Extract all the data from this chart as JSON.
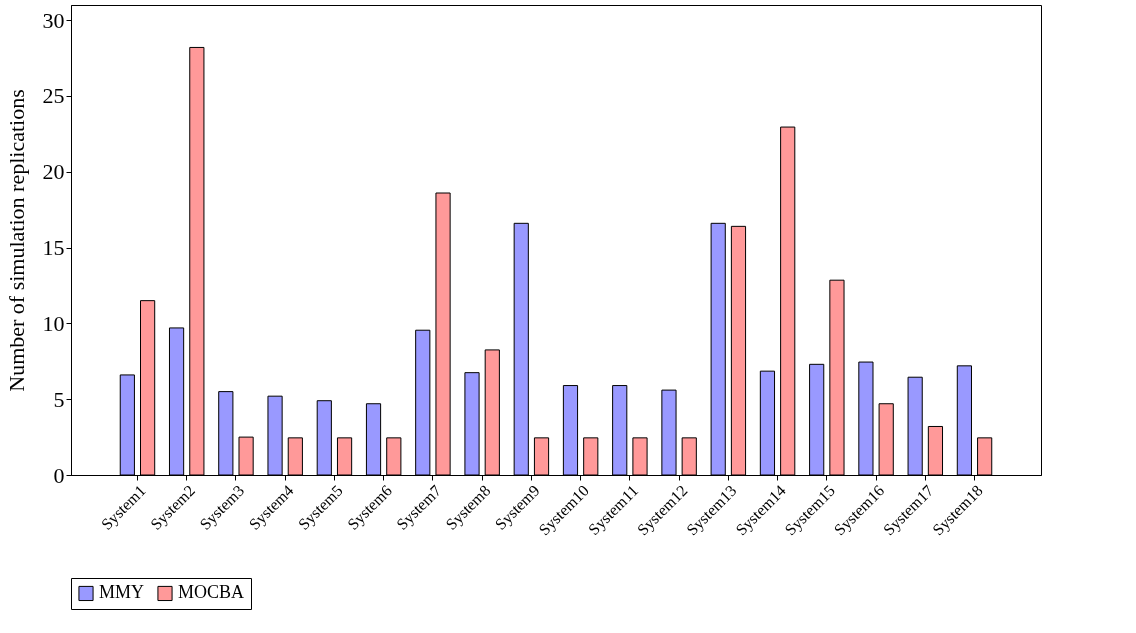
{
  "chart_data": {
    "type": "bar",
    "ylabel": "Number of simulation replications",
    "categories": [
      "System1",
      "System2",
      "System3",
      "System4",
      "System5",
      "System6",
      "System7",
      "System8",
      "System9",
      "System10",
      "System11",
      "System12",
      "System13",
      "System14",
      "System15",
      "System16",
      "System17",
      "System18"
    ],
    "series": [
      {
        "name": "MMY",
        "color": "#9999ff",
        "values": [
          6.6,
          9.7,
          5.5,
          5.2,
          4.9,
          4.7,
          9.55,
          6.75,
          16.6,
          5.9,
          5.9,
          5.6,
          16.6,
          6.85,
          7.3,
          7.45,
          6.45,
          7.2
        ]
      },
      {
        "name": "MOCBA",
        "color": "#ff9999",
        "values": [
          11.5,
          28.2,
          2.5,
          2.45,
          2.45,
          2.45,
          18.6,
          8.25,
          2.45,
          2.45,
          2.45,
          2.45,
          16.4,
          22.95,
          12.85,
          4.7,
          3.2,
          2.45
        ]
      }
    ],
    "ylim": [
      0,
      31
    ],
    "yticks": [
      0,
      5,
      10,
      15,
      20,
      25,
      30
    ],
    "grid": false,
    "legend": "bottom"
  }
}
